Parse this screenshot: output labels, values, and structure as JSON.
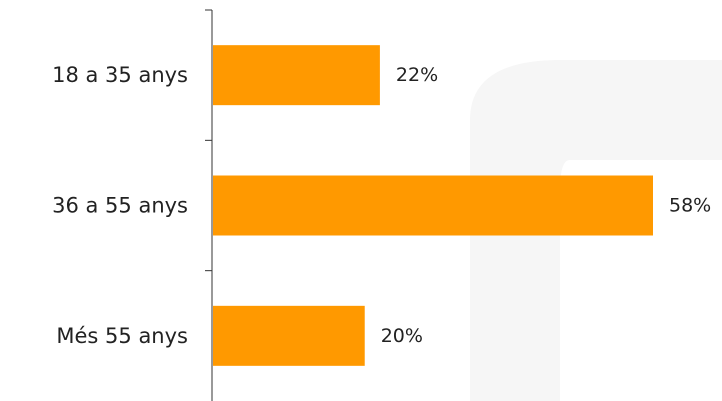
{
  "chart_data": {
    "type": "bar",
    "orientation": "horizontal",
    "categories": [
      "18 a 35 anys",
      "36 a 55 anys",
      "Més 55 anys"
    ],
    "values": [
      22,
      58,
      20
    ],
    "value_labels": [
      "22%",
      "58%",
      "20%"
    ],
    "unit": "%",
    "xlim": [
      0,
      60
    ],
    "grid": false,
    "legend": "none",
    "bar_color": "#FF9900",
    "axis_color": "#333333",
    "title": "",
    "xlabel": "",
    "ylabel": ""
  }
}
